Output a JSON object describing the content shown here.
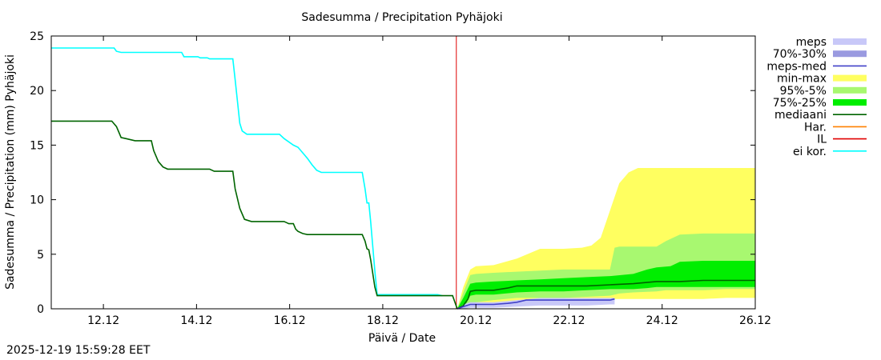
{
  "chart_data": {
    "type": "line",
    "title": "Sadesumma / Precipitation  Pyhäjoki",
    "xlabel": "Päivä / Date",
    "ylabel": "Sadesumma / Precipitation (mm)  Pyhäjoki",
    "xlim": [
      11,
      26.12
    ],
    "ylim": [
      0,
      25
    ],
    "x_ticks": [
      {
        "x": 12.12,
        "label": "12.12"
      },
      {
        "x": 14.12,
        "label": "14.12"
      },
      {
        "x": 16.12,
        "label": "16.12"
      },
      {
        "x": 18.12,
        "label": "18.12"
      },
      {
        "x": 20.12,
        "label": "20.12"
      },
      {
        "x": 22.12,
        "label": "22.12"
      },
      {
        "x": 24.12,
        "label": "24.12"
      },
      {
        "x": 26.12,
        "label": "26.12"
      }
    ],
    "y_ticks": [
      {
        "y": 0,
        "label": "0"
      },
      {
        "y": 5,
        "label": "5"
      },
      {
        "y": 10,
        "label": "10"
      },
      {
        "y": 15,
        "label": "15"
      },
      {
        "y": 20,
        "label": "20"
      },
      {
        "y": 25,
        "label": "25"
      }
    ],
    "forecast_start": 19.7,
    "legend": [
      {
        "key": "meps",
        "label": "meps",
        "color": "#c8c8f8",
        "kind": "band"
      },
      {
        "key": "p70_30",
        "label": "70%-30%",
        "color": "#9a9ae0",
        "kind": "band"
      },
      {
        "key": "meps_med",
        "label": "meps-med",
        "color": "#4040c8",
        "kind": "line"
      },
      {
        "key": "minmax",
        "label": "min-max",
        "color": "#ffff60",
        "kind": "band"
      },
      {
        "key": "p95_5",
        "label": "95%-5%",
        "color": "#a8f870",
        "kind": "band"
      },
      {
        "key": "p75_25",
        "label": "75%-25%",
        "color": "#00ee00",
        "kind": "band"
      },
      {
        "key": "median",
        "label": "mediaani",
        "color": "#006400",
        "kind": "line"
      },
      {
        "key": "har",
        "label": "Har.",
        "color": "#ff8000",
        "kind": "line"
      },
      {
        "key": "il",
        "label": "IL",
        "color": "#e00000",
        "kind": "line"
      },
      {
        "key": "ei_kor",
        "label": "ei kor.",
        "color": "#00ffff",
        "kind": "line"
      }
    ],
    "series": [
      {
        "name": "ei kor.",
        "color": "#00ffff",
        "x": [
          11.0,
          11.3,
          12.35,
          12.4,
          12.5,
          12.6,
          13.8,
          13.85,
          14.15,
          14.2,
          14.35,
          14.4,
          14.45,
          14.9,
          14.95,
          15.0,
          15.05,
          15.1,
          15.2,
          15.3,
          15.5,
          15.9,
          16.0,
          16.2,
          16.3,
          16.5,
          16.6,
          16.7,
          16.8,
          17.0,
          17.5,
          17.68,
          17.74,
          17.78,
          17.82,
          17.86,
          17.9,
          17.95,
          18.0,
          18.5,
          19.3,
          19.4
        ],
        "values": [
          23.9,
          23.9,
          23.9,
          23.6,
          23.5,
          23.5,
          23.5,
          23.1,
          23.1,
          23.0,
          23.0,
          22.9,
          22.9,
          22.9,
          21.0,
          19.0,
          17.0,
          16.3,
          16.0,
          16.0,
          16.0,
          16.0,
          15.6,
          15.0,
          14.8,
          13.8,
          13.2,
          12.7,
          12.5,
          12.5,
          12.5,
          12.5,
          11.0,
          9.7,
          9.7,
          8.0,
          6.0,
          3.5,
          1.3,
          1.3,
          1.3,
          1.2
        ]
      },
      {
        "name": "mediaani (observed)",
        "color": "#006400",
        "x": [
          11.0,
          12.2,
          12.3,
          12.4,
          12.45,
          12.5,
          12.6,
          12.8,
          13.15,
          13.2,
          13.3,
          13.4,
          13.5,
          13.6,
          13.8,
          14.0,
          14.4,
          14.5,
          14.9,
          14.95,
          15.05,
          15.15,
          15.3,
          15.5,
          16.0,
          16.05,
          16.1,
          16.2,
          16.25,
          16.3,
          16.4,
          16.5,
          17.5,
          17.68,
          17.74,
          17.78,
          17.82,
          17.86,
          17.9,
          17.95,
          18.0,
          18.5,
          19.3,
          19.62,
          19.72
        ],
        "values": [
          17.2,
          17.2,
          17.2,
          16.7,
          16.2,
          15.7,
          15.6,
          15.4,
          15.4,
          14.5,
          13.5,
          13.0,
          12.8,
          12.8,
          12.8,
          12.8,
          12.8,
          12.6,
          12.6,
          11.0,
          9.2,
          8.2,
          8.0,
          8.0,
          8.0,
          7.9,
          7.8,
          7.8,
          7.3,
          7.1,
          6.9,
          6.8,
          6.8,
          6.8,
          6.2,
          5.5,
          5.4,
          4.5,
          3.4,
          2.0,
          1.2,
          1.2,
          1.2,
          1.2,
          0.0
        ]
      },
      {
        "name": "mediaani (forecast)",
        "color": "#006400",
        "x": [
          19.72,
          19.85,
          19.95,
          20.0,
          20.12,
          20.5,
          20.8,
          21.0,
          21.5,
          22.0,
          22.5,
          23.0,
          23.5,
          24.0,
          24.5,
          25.0,
          25.5,
          26.12
        ],
        "values": [
          0.0,
          0.3,
          0.9,
          1.6,
          1.7,
          1.7,
          1.9,
          2.1,
          2.1,
          2.1,
          2.1,
          2.2,
          2.3,
          2.5,
          2.5,
          2.6,
          2.6,
          2.6
        ]
      },
      {
        "name": "meps-med",
        "color": "#4040c8",
        "x": [
          19.72,
          19.85,
          20.0,
          20.5,
          20.8,
          21.0,
          21.2,
          21.5,
          22.0,
          22.5,
          23.0,
          23.1
        ],
        "values": [
          0.0,
          0.2,
          0.4,
          0.4,
          0.5,
          0.6,
          0.8,
          0.8,
          0.8,
          0.8,
          0.8,
          0.9
        ]
      }
    ],
    "bands": [
      {
        "name": "min-max",
        "color": "#ffff60",
        "x": [
          19.72,
          19.85,
          20.0,
          20.12,
          20.5,
          21.0,
          21.5,
          22.0,
          22.4,
          22.6,
          22.8,
          23.0,
          23.2,
          23.4,
          23.6,
          24.0,
          24.5,
          25.0,
          25.5,
          26.12
        ],
        "upper": [
          0.0,
          2.0,
          3.6,
          3.9,
          4.0,
          4.6,
          5.5,
          5.5,
          5.6,
          5.8,
          6.5,
          9.0,
          11.5,
          12.5,
          12.9,
          12.9,
          12.9,
          12.9,
          12.9,
          12.9
        ],
        "lower": [
          0.0,
          0.0,
          0.1,
          0.3,
          0.4,
          0.5,
          0.6,
          0.7,
          0.8,
          0.8,
          0.8,
          0.9,
          0.9,
          0.9,
          0.9,
          0.9,
          0.9,
          0.9,
          1.0,
          1.0
        ]
      },
      {
        "name": "95%-5%",
        "color": "#a8f870",
        "x": [
          19.72,
          19.85,
          20.0,
          20.12,
          20.5,
          21.0,
          21.5,
          22.0,
          22.5,
          23.0,
          23.1,
          23.2,
          23.5,
          24.0,
          24.2,
          24.5,
          25.0,
          25.5,
          26.12
        ],
        "upper": [
          0.0,
          1.5,
          3.1,
          3.2,
          3.3,
          3.4,
          3.5,
          3.6,
          3.6,
          3.6,
          5.6,
          5.7,
          5.7,
          5.7,
          6.2,
          6.8,
          6.9,
          6.9,
          6.9
        ],
        "lower": [
          0.0,
          0.0,
          0.4,
          0.6,
          0.8,
          1.0,
          1.0,
          1.0,
          1.1,
          1.2,
          1.3,
          1.4,
          1.5,
          1.6,
          1.7,
          1.7,
          1.7,
          1.8,
          1.8
        ]
      },
      {
        "name": "75%-25%",
        "color": "#00ee00",
        "x": [
          19.72,
          19.85,
          20.0,
          20.12,
          20.5,
          21.0,
          21.5,
          22.0,
          22.5,
          23.0,
          23.5,
          23.8,
          24.0,
          24.3,
          24.5,
          25.0,
          25.5,
          26.12
        ],
        "upper": [
          0.0,
          1.0,
          2.3,
          2.4,
          2.5,
          2.6,
          2.7,
          2.8,
          2.9,
          3.0,
          3.2,
          3.6,
          3.8,
          3.9,
          4.3,
          4.4,
          4.4,
          4.4
        ],
        "lower": [
          0.0,
          0.0,
          1.2,
          1.3,
          1.3,
          1.5,
          1.6,
          1.6,
          1.7,
          1.8,
          1.8,
          1.9,
          2.0,
          2.0,
          2.0,
          2.0,
          2.0,
          2.0
        ]
      },
      {
        "name": "meps",
        "color": "#c8c8f8",
        "x": [
          19.72,
          19.85,
          20.0,
          20.5,
          21.0,
          21.5,
          22.0,
          22.5,
          23.0,
          23.1
        ],
        "upper": [
          0.0,
          0.4,
          0.6,
          0.6,
          0.8,
          1.0,
          1.0,
          1.0,
          1.0,
          1.0
        ],
        "lower": [
          0.0,
          0.0,
          0.1,
          0.1,
          0.2,
          0.3,
          0.3,
          0.3,
          0.4,
          0.4
        ]
      }
    ]
  },
  "timestamp": "2025-12-19 15:59:28 EET"
}
